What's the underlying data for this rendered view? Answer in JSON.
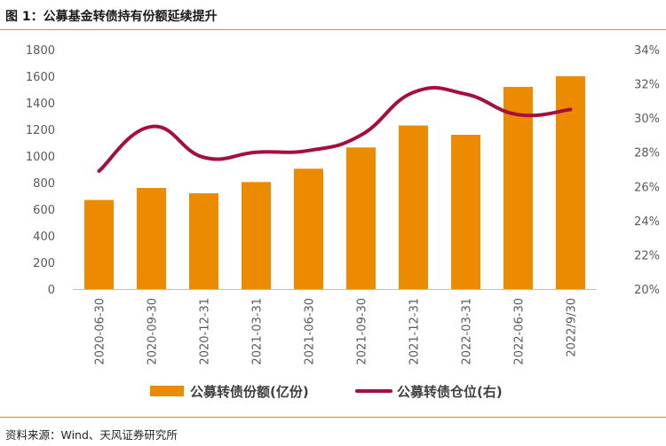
{
  "header": {
    "title": "图 1：公募基金转债持有份额延续提升"
  },
  "footer": {
    "source": "资料来源：Wind、天风证券研究所"
  },
  "colors": {
    "bar": "#ED8B00",
    "line": "#A50F3C",
    "rule": "#E08A2E",
    "grid": "#D9D9D9",
    "axis": "#BFBFBF",
    "tick": "#595959"
  },
  "chart_data": {
    "type": "bar",
    "title": "公募基金转债持有份额延续提升",
    "categories": [
      "2020-06-30",
      "2020-09-30",
      "2020-12-31",
      "2021-03-31",
      "2021-06-30",
      "2021-09-30",
      "2021-12-31",
      "2022-03-31",
      "2022-06-30",
      "2022/9/30"
    ],
    "series": [
      {
        "name": "公募转债份额(亿份)",
        "type": "bar",
        "axis": "left",
        "values": [
          670,
          760,
          720,
          805,
          905,
          1065,
          1230,
          1160,
          1520,
          1600
        ]
      },
      {
        "name": "公募转债仓位(右)",
        "type": "line",
        "axis": "right",
        "smooth": true,
        "values": [
          0.269,
          0.295,
          0.277,
          0.28,
          0.281,
          0.29,
          0.315,
          0.314,
          0.302,
          0.305
        ]
      }
    ],
    "y_left": {
      "ylim": [
        0,
        1800
      ],
      "ticks": [
        "0",
        "200",
        "400",
        "600",
        "800",
        "1000",
        "1200",
        "1400",
        "1600",
        "1800"
      ]
    },
    "y_right": {
      "ylim": [
        0.2,
        0.34
      ],
      "ticks": [
        "20%",
        "22%",
        "24%",
        "26%",
        "28%",
        "30%",
        "32%",
        "34%"
      ]
    },
    "grid": false,
    "legend_position": "bottom"
  }
}
